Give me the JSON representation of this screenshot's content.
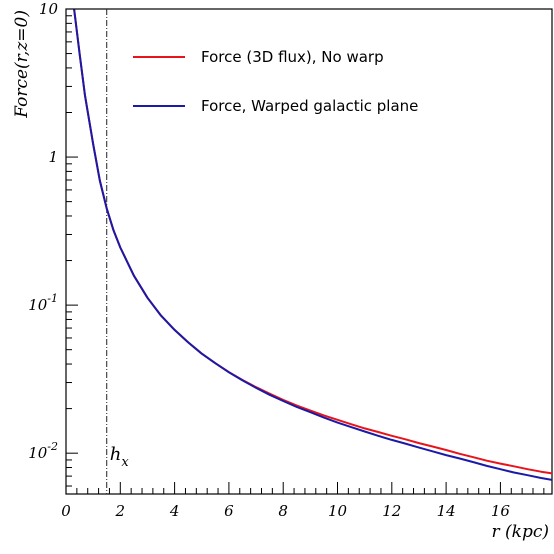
{
  "chart_data": {
    "type": "line",
    "xlabel": "r (kpc)",
    "ylabel": "Force(r,z=0)",
    "xlim": [
      0,
      17.9
    ],
    "ylim": [
      0.0053,
      10
    ],
    "yscale": "log",
    "grid": false,
    "legend_position": "top-right",
    "x_ticks": [
      {
        "value": 0,
        "label": "0"
      },
      {
        "value": 2,
        "label": "2"
      },
      {
        "value": 4,
        "label": "4"
      },
      {
        "value": 6,
        "label": "6"
      },
      {
        "value": 8,
        "label": "8"
      },
      {
        "value": 10,
        "label": "10"
      },
      {
        "value": 12,
        "label": "12"
      },
      {
        "value": 14,
        "label": "14"
      },
      {
        "value": 16,
        "label": "16"
      }
    ],
    "y_ticks": [
      {
        "value": 10,
        "base": "10",
        "exp": ""
      },
      {
        "value": 1,
        "base": "1",
        "exp": ""
      },
      {
        "value": 0.1,
        "base": "10",
        "exp": "-1"
      },
      {
        "value": 0.01,
        "base": "10",
        "exp": "-2"
      }
    ],
    "annotations": [
      {
        "type": "vline",
        "x": 1.5,
        "style": "dash-dot",
        "label_base": "h",
        "label_sub": "x"
      }
    ],
    "series": [
      {
        "name": "Force (3D flux), No warp",
        "color": "#e8141c",
        "x": [
          0.3,
          0.5,
          0.7,
          1.0,
          1.25,
          1.5,
          1.75,
          2.0,
          2.5,
          3.0,
          3.5,
          4.0,
          4.5,
          5.0,
          5.5,
          6.0,
          6.5,
          7.0,
          7.5,
          8.0,
          8.5,
          9.0,
          9.5,
          10.0,
          10.5,
          11.0,
          11.5,
          12.0,
          12.5,
          13.0,
          13.5,
          14.0,
          14.5,
          15.0,
          15.5,
          16.0,
          16.5,
          17.0,
          17.5,
          17.9
        ],
        "y": [
          10,
          5.0,
          2.6,
          1.22,
          0.69,
          0.45,
          0.32,
          0.245,
          0.158,
          0.112,
          0.085,
          0.068,
          0.056,
          0.047,
          0.0405,
          0.0353,
          0.0312,
          0.0279,
          0.0252,
          0.0229,
          0.021,
          0.0194,
          0.018,
          0.0168,
          0.0157,
          0.0147,
          0.0139,
          0.0131,
          0.0124,
          0.0117,
          0.0111,
          0.0105,
          0.0099,
          0.0094,
          0.0089,
          0.0085,
          0.00815,
          0.0078,
          0.0075,
          0.0073
        ]
      },
      {
        "name": "Force, Warped galactic plane",
        "color": "#1a1aa8",
        "x": [
          0.3,
          0.5,
          0.7,
          1.0,
          1.25,
          1.5,
          1.75,
          2.0,
          2.5,
          3.0,
          3.5,
          4.0,
          4.5,
          5.0,
          5.5,
          6.0,
          6.5,
          7.0,
          7.5,
          8.0,
          8.5,
          9.0,
          9.5,
          10.0,
          10.5,
          11.0,
          11.5,
          12.0,
          12.5,
          13.0,
          13.5,
          14.0,
          14.5,
          15.0,
          15.5,
          16.0,
          16.5,
          17.0,
          17.5,
          17.9
        ],
        "y": [
          10,
          5.0,
          2.6,
          1.22,
          0.69,
          0.45,
          0.32,
          0.245,
          0.158,
          0.112,
          0.085,
          0.068,
          0.056,
          0.047,
          0.0405,
          0.0352,
          0.031,
          0.0276,
          0.0248,
          0.0225,
          0.0205,
          0.0189,
          0.0174,
          0.0161,
          0.015,
          0.014,
          0.0131,
          0.0123,
          0.0116,
          0.0109,
          0.0103,
          0.0097,
          0.0092,
          0.0087,
          0.0082,
          0.0078,
          0.0074,
          0.0071,
          0.0068,
          0.0066
        ]
      }
    ]
  }
}
